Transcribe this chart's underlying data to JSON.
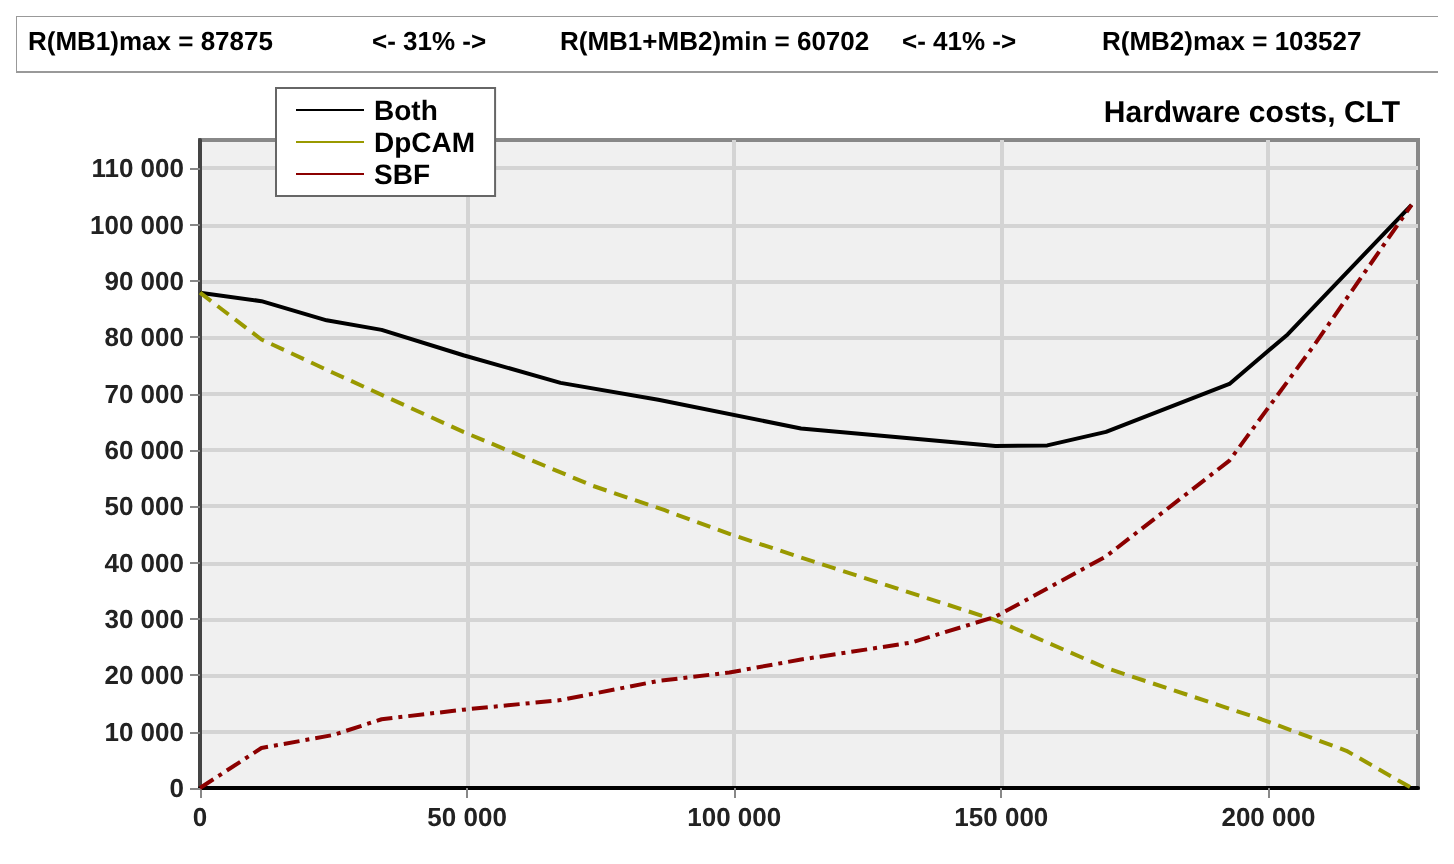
{
  "chart_data": {
    "type": "line",
    "title": "Hardware costs, CLT",
    "annotations": [
      "R(MB1)max = 87875",
      "<- 31% ->",
      "R(MB1+MB2)min = 60702",
      "<- 41% ->",
      "R(MB2)max = 103527"
    ],
    "series": [
      {
        "name": "Both",
        "color": "#000000",
        "line_style": "solid",
        "x": [
          0,
          11500,
          23700,
          34000,
          49300,
          67500,
          85800,
          112500,
          148900,
          158600,
          169600,
          192700,
          203600,
          226800
        ],
        "values": [
          87900,
          86400,
          83000,
          81300,
          76800,
          71900,
          68900,
          63800,
          60700,
          60800,
          63200,
          71700,
          80500,
          103500
        ]
      },
      {
        "name": "DpCAM",
        "color": "#999900",
        "line_style": "dashed",
        "x": [
          0,
          11500,
          24900,
          49300,
          73600,
          87000,
          99100,
          112500,
          148900,
          169600,
          198700,
          214600,
          226800
        ],
        "values": [
          87900,
          79600,
          73700,
          63200,
          53600,
          49300,
          45100,
          40900,
          29800,
          21300,
          12200,
          6600,
          0
        ]
      },
      {
        "name": "SBF",
        "color": "#8b0000",
        "line_style": "dotted",
        "x": [
          0,
          11500,
          24900,
          34000,
          49300,
          67500,
          85800,
          99100,
          112500,
          133100,
          148900,
          158600,
          169600,
          192700,
          208500,
          226800
        ],
        "values": [
          0,
          7100,
          9400,
          12200,
          13900,
          15600,
          19000,
          20500,
          22800,
          25800,
          30400,
          35400,
          41100,
          58100,
          78500,
          103500
        ]
      }
    ],
    "xlim": [
      0,
      228000
    ],
    "xticks": [
      {
        "value": 0,
        "label": "0"
      },
      {
        "value": 50000,
        "label": "50 000"
      },
      {
        "value": 100000,
        "label": "100 000"
      },
      {
        "value": 150000,
        "label": "150 000"
      },
      {
        "value": 200000,
        "label": "200 000"
      }
    ],
    "ylim": [
      0,
      115000
    ],
    "yticks": [
      {
        "value": 0,
        "label": "0"
      },
      {
        "value": 10000,
        "label": "10 000"
      },
      {
        "value": 20000,
        "label": "20 000"
      },
      {
        "value": 30000,
        "label": "30 000"
      },
      {
        "value": 40000,
        "label": "40 000"
      },
      {
        "value": 50000,
        "label": "50 000"
      },
      {
        "value": 60000,
        "label": "60 000"
      },
      {
        "value": 70000,
        "label": "70 000"
      },
      {
        "value": 80000,
        "label": "80 000"
      },
      {
        "value": 90000,
        "label": "90 000"
      },
      {
        "value": 100000,
        "label": "100 000"
      },
      {
        "value": 110000,
        "label": "110 000"
      }
    ],
    "grid": true,
    "legend": "top left",
    "marker": "none"
  }
}
